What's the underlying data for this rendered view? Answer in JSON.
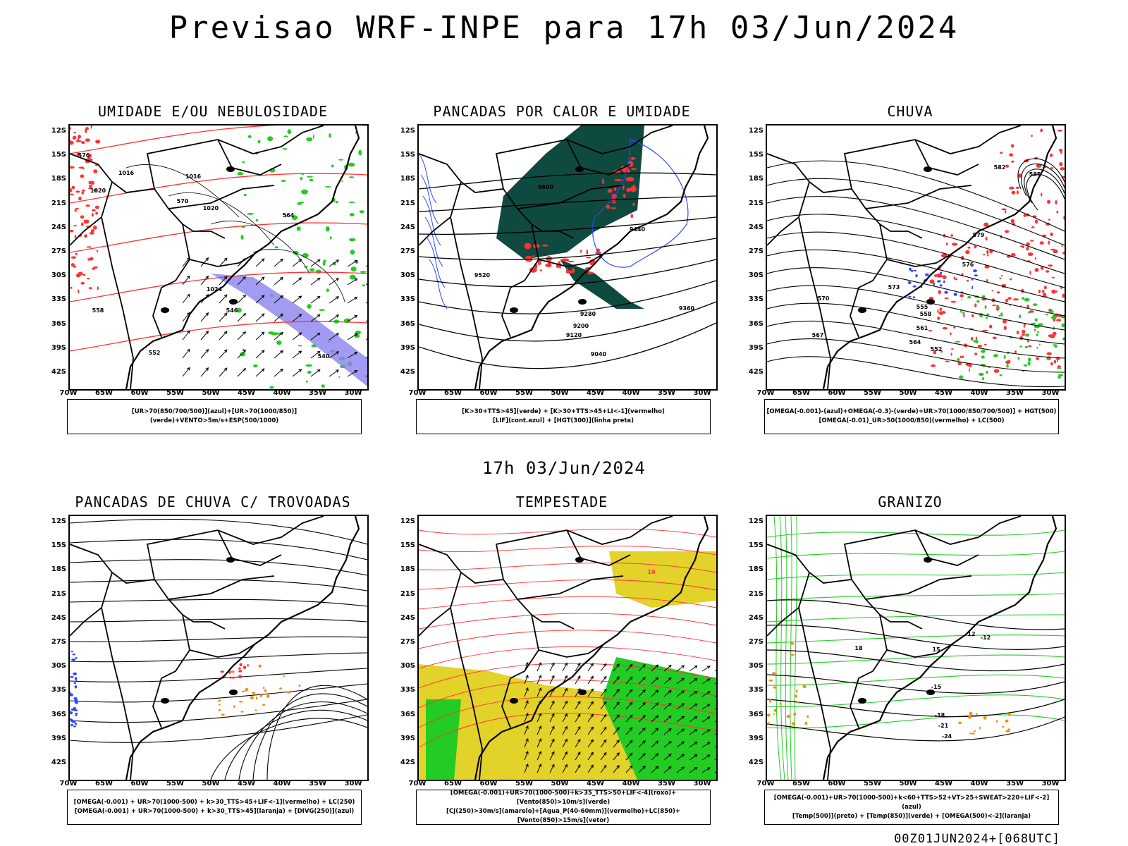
{
  "main_title": "Previsao WRF-INPE  para 17h 03/Jun/2024",
  "mid_title": "17h 03/Jun/2024",
  "footer": "00Z01JUN2024+[068UTC]",
  "lat_labels": [
    "12S",
    "15S",
    "18S",
    "21S",
    "24S",
    "27S",
    "30S",
    "33S",
    "36S",
    "39S",
    "42S"
  ],
  "lon_labels": [
    "70W",
    "65W",
    "60W",
    "55W",
    "50W",
    "45W",
    "40W",
    "35W",
    "30W"
  ],
  "panels": [
    {
      "id": "umidade",
      "title": "UMIDADE E/OU NEBULOSIDADE",
      "legend": [
        "[UR>70(850/700/500)](azul)+[UR>70(1000/850)](verde)+VENTO>5m/s+ESP(500/1000)"
      ],
      "contour_labels": [
        "1016",
        "1016",
        "1020",
        "1020",
        "1024",
        "576",
        "570",
        "564",
        "558",
        "552",
        "546",
        "540"
      ]
    },
    {
      "id": "pancadas-calor",
      "title": "PANCADAS POR CALOR E UMIDADE",
      "legend": [
        "[K>30+TTS>45](verde) + [K>30+TTS>45+LI<-1](vermelho)",
        "[LIF](cont.azul) + [HGT(300)](linha preta)"
      ],
      "contour_labels": [
        "9600",
        "9520",
        "9440",
        "9360",
        "9280",
        "9200",
        "9120",
        "9040"
      ]
    },
    {
      "id": "chuva",
      "title": "CHUVA",
      "legend": [
        "[OMEGA(-0.001)-(azul)+OMEGA(-0.3)-(verde)+UR>70(1000/850/700/500)] + HGT(500)",
        "[OMEGA(-0.01)_UR>50(1000/850)(vermelho) + LC(500)"
      ],
      "contour_labels": [
        "585",
        "582",
        "579",
        "576",
        "573",
        "570",
        "567",
        "564",
        "561",
        "558",
        "555",
        "552"
      ]
    },
    {
      "id": "pancadas-trovoadas",
      "title": "PANCADAS DE CHUVA C/ TROVOADAS",
      "legend": [
        "[OMEGA(-0.001) + UR>70(1000-500) + k>30_TTS>45+LIF<-1](vermelho) + LC(250)",
        "[OMEGA(-0.001) + UR>70(1000-500) + k>30_TTS>45](laranja) + [DIVG(250)](azul)"
      ],
      "contour_labels": []
    },
    {
      "id": "tempestade",
      "title": "TEMPESTADE",
      "legend": [
        "[OMEGA(-0.001)+UR>70(1000-500)+k>35_TTS>50+LIF<-4](roxo)+[Vento(850)>10m/s](verde)",
        "[CJ(250)>30m/s](amarelo)+[Agua_P(40-60mm)](vermelho)+LC(850)+[Vento(850)>15m/s](vetor)"
      ],
      "contour_labels": [
        "10"
      ]
    },
    {
      "id": "granizo",
      "title": "GRANIZO",
      "legend": [
        "[OMEGA(-0.001)+UR>70(1000-500)+k<60+TTS>52+VT>25+SWEAT>220+LIF<-2](azul)",
        "[Temp(500)](preto) + [Temp(850)](verde) + [OMEGA(500)<-2](laranja)"
      ],
      "contour_labels": [
        "-12",
        "-15",
        "-18",
        "-21",
        "-24",
        "12",
        "15",
        "18"
      ]
    }
  ],
  "colors": {
    "azul": "#2a4bff",
    "verde": "#22cc22",
    "vermelho": "#ff3333",
    "laranja": "#ff8800",
    "amarelo": "#e3d22a",
    "roxo": "#8a82ee",
    "verde_escuro": "#0f4a40",
    "preto": "#000000"
  }
}
